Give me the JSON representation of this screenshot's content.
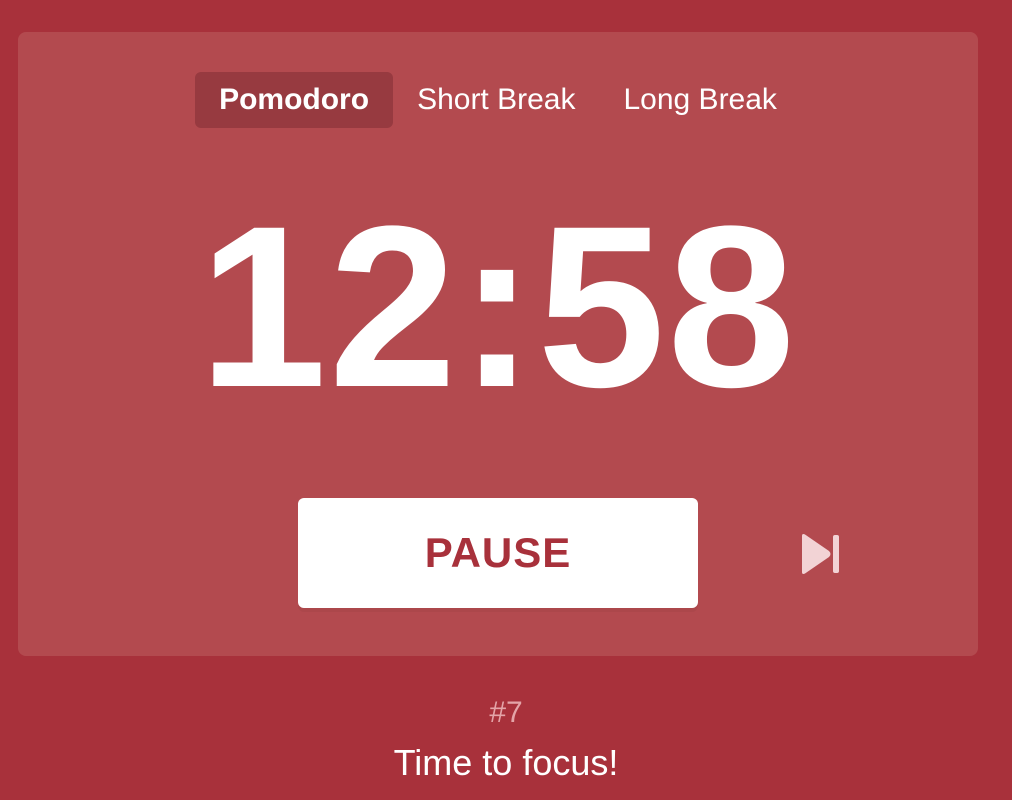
{
  "tabs": [
    {
      "label": "Pomodoro",
      "active": true
    },
    {
      "label": "Short Break",
      "active": false
    },
    {
      "label": "Long Break",
      "active": false
    }
  ],
  "timer": {
    "display": "12:58"
  },
  "controls": {
    "pause_label": "PAUSE",
    "skip_icon": "skip-next-icon"
  },
  "footer": {
    "round": "#7",
    "message": "Time to focus!"
  },
  "colors": {
    "background": "#a8313b",
    "card": "#b34a4f",
    "active_tab": "#973a40",
    "button_text": "#a8313b",
    "round_text": "#e4a4a8"
  }
}
